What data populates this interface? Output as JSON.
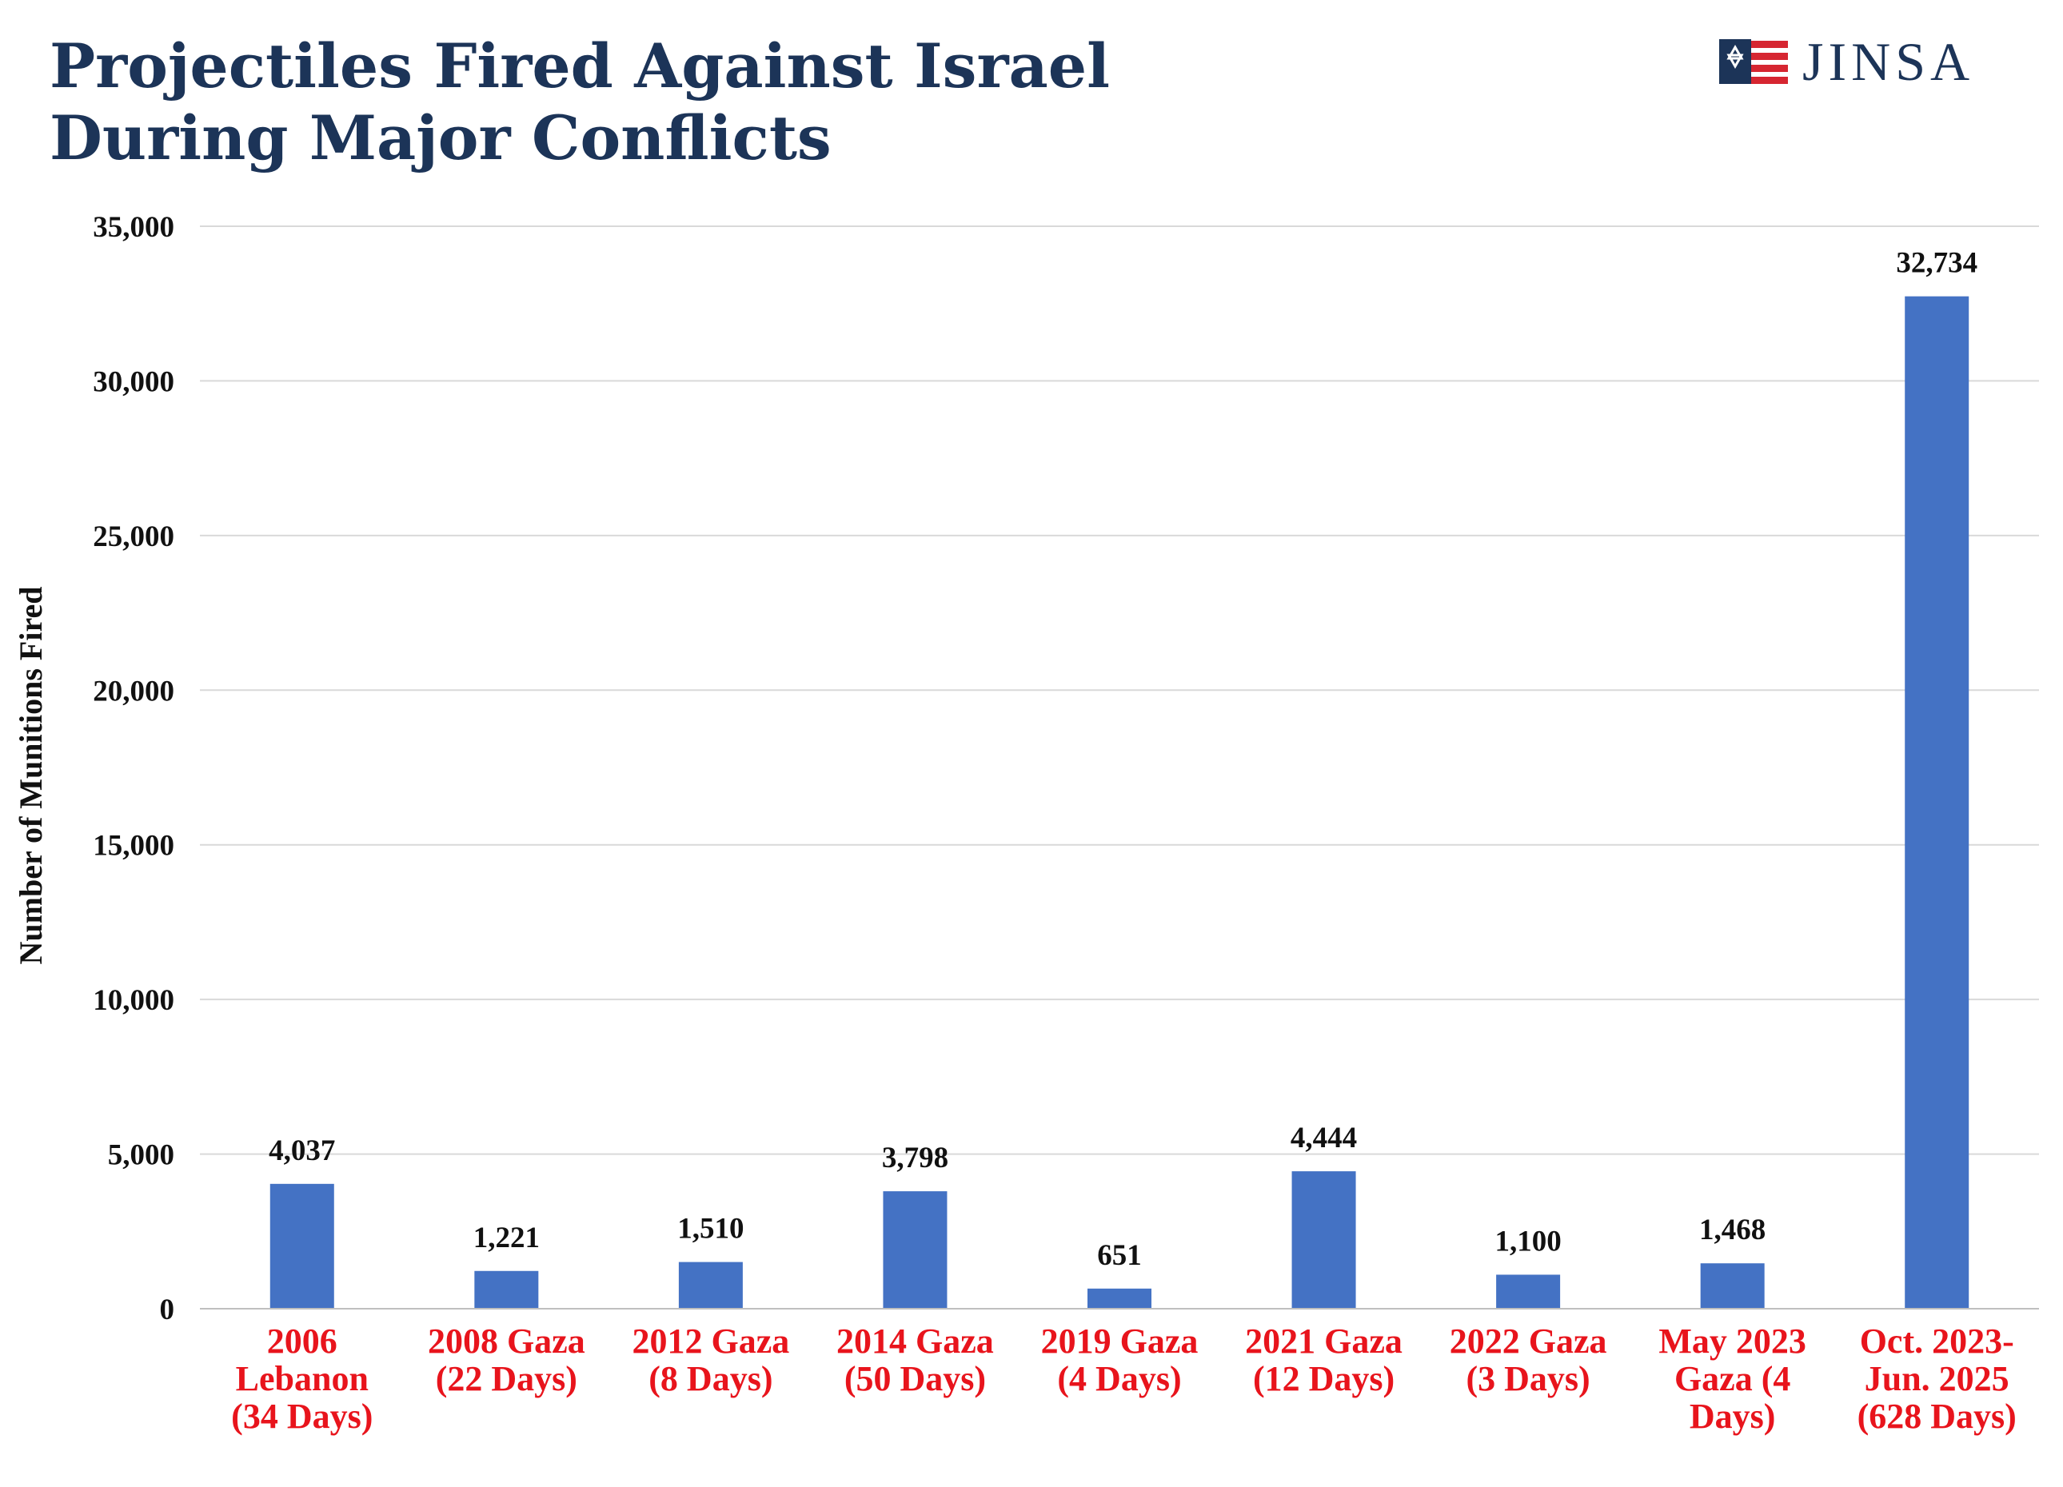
{
  "header": {
    "title_line1": "Projectiles Fired Against Israel",
    "title_line2": "During Major Conflicts",
    "logo_text": "JINSA"
  },
  "colors": {
    "title": "#1c3458",
    "bar": "#4472c4",
    "category_label": "#e8141c",
    "gridline": "#d9d9d9",
    "logo_red": "#d62631",
    "logo_blue": "#1c3458"
  },
  "chart_data": {
    "type": "bar",
    "title": "Projectiles Fired Against Israel During Major Conflicts",
    "xlabel": "",
    "ylabel": "Number of Munitions Fired",
    "ylim": [
      0,
      35000
    ],
    "yticks": [
      0,
      5000,
      10000,
      15000,
      20000,
      25000,
      30000,
      35000
    ],
    "ytick_labels": [
      "0",
      "5,000",
      "10,000",
      "15,000",
      "20,000",
      "25,000",
      "30,000",
      "35,000"
    ],
    "grid": true,
    "legend": "none",
    "categories": [
      [
        "2006",
        "Lebanon",
        "(34 Days)"
      ],
      [
        "2008 Gaza",
        "(22 Days)"
      ],
      [
        "2012 Gaza",
        "(8 Days)"
      ],
      [
        "2014 Gaza",
        "(50 Days)"
      ],
      [
        "2019 Gaza",
        "(4 Days)"
      ],
      [
        "2021 Gaza",
        "(12 Days)"
      ],
      [
        "2022 Gaza",
        "(3 Days)"
      ],
      [
        "May 2023",
        "Gaza (4",
        "Days)"
      ],
      [
        "Oct. 2023-",
        "Jun. 2025",
        "(628 Days)"
      ]
    ],
    "values": [
      4037,
      1221,
      1510,
      3798,
      651,
      4444,
      1100,
      1468,
      32734
    ],
    "value_labels": [
      "4,037",
      "1,221",
      "1,510",
      "3,798",
      "651",
      "4,444",
      "1,100",
      "1,468",
      "32,734"
    ]
  }
}
